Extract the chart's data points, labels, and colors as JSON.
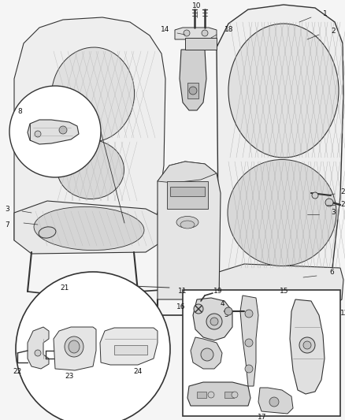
{
  "bg_color": "#f5f5f5",
  "line_color": "#333333",
  "label_color": "#111111",
  "figsize": [
    4.38,
    5.33
  ],
  "dpi": 100,
  "ax_bg": "#f5f5f5"
}
